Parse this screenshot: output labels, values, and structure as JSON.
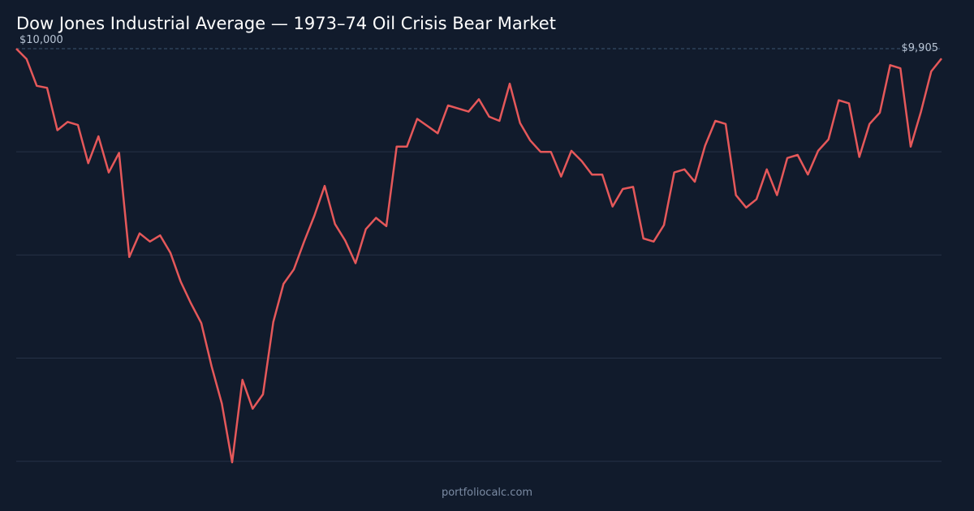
{
  "title": "Dow Jones Industrial Average — 1973–74 Oil Crisis Bear Market",
  "footer": "portfoliocalc.com",
  "colors": {
    "background": "#111b2c",
    "line": "#e5585a",
    "grid": "#263246",
    "reference": "#3a5470",
    "label": "#b8c4d4"
  },
  "chart_data": {
    "type": "line",
    "title": "Dow Jones Industrial Average — 1973–74 Oil Crisis Bear Market",
    "xlabel": "",
    "ylabel": "",
    "ylim": [
      5990,
      10000
    ],
    "grid": true,
    "gridlines": [
      9000,
      8000,
      7000,
      6000
    ],
    "reference_line": 10000,
    "start_label": "$10,000",
    "end_label": "$9,905",
    "series": [
      {
        "values": [
          10000,
          9900,
          9640,
          9620,
          9210,
          9290,
          9260,
          8890,
          9150,
          8800,
          8990,
          7980,
          8210,
          8130,
          8190,
          8020,
          7740,
          7530,
          7340,
          6920,
          6560,
          5990,
          6790,
          6510,
          6650,
          7350,
          7720,
          7860,
          8130,
          8380,
          8670,
          8300,
          8140,
          7920,
          8250,
          8360,
          8280,
          9050,
          9050,
          9320,
          9250,
          9180,
          9450,
          9420,
          9390,
          9510,
          9340,
          9300,
          9660,
          9280,
          9110,
          9000,
          9000,
          8760,
          9010,
          8910,
          8780,
          8780,
          8470,
          8640,
          8660,
          8160,
          8130,
          8290,
          8800,
          8830,
          8710,
          9060,
          9300,
          9270,
          8580,
          8460,
          8540,
          8830,
          8580,
          8940,
          8970,
          8780,
          9010,
          9120,
          9500,
          9470,
          8950,
          9270,
          9380,
          9840,
          9810,
          9050,
          9390,
          9780,
          9905
        ]
      }
    ]
  }
}
